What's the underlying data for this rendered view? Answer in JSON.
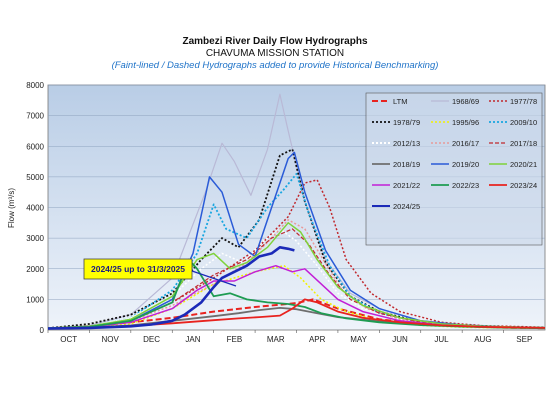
{
  "chart_data": {
    "type": "line",
    "title": "Zambezi River Daily Flow Hydrographs",
    "subtitle": "CHAVUMA MISSION STATION",
    "note": "(Faint-lined / Dashed Hydrographs added to provide Historical Benchmarking)",
    "ylabel": "Flow (m³/s)",
    "ylim": [
      0,
      8000
    ],
    "yticks": [
      0,
      1000,
      2000,
      3000,
      4000,
      5000,
      6000,
      7000,
      8000
    ],
    "categories": [
      "OCT",
      "NOV",
      "DEC",
      "JAN",
      "FEB",
      "MAR",
      "APR",
      "MAY",
      "JUN",
      "JUL",
      "AUG",
      "SEP"
    ],
    "grid": true,
    "legend_position": "top-right",
    "callout": "2024/25 up to 31/3/2025",
    "series": [
      {
        "name": "LTM",
        "color": "#e8231f",
        "dash": "6,3",
        "width": 2,
        "points": [
          [
            0,
            60
          ],
          [
            1,
            120
          ],
          [
            2,
            250
          ],
          [
            3,
            400
          ],
          [
            4,
            600
          ],
          [
            5,
            750
          ],
          [
            6,
            880
          ],
          [
            6.4,
            1000
          ],
          [
            7,
            700
          ],
          [
            8,
            350
          ],
          [
            9,
            200
          ],
          [
            10,
            120
          ],
          [
            11,
            80
          ],
          [
            12,
            60
          ]
        ]
      },
      {
        "name": "1968/69",
        "color": "#b9b9d6",
        "dash": "",
        "width": 1.2,
        "points": [
          [
            0,
            60
          ],
          [
            1,
            150
          ],
          [
            2,
            500
          ],
          [
            3,
            1700
          ],
          [
            3.8,
            4500
          ],
          [
            4.2,
            6100
          ],
          [
            4.5,
            5500
          ],
          [
            4.9,
            4400
          ],
          [
            5.3,
            5900
          ],
          [
            5.6,
            7700
          ],
          [
            5.8,
            6500
          ],
          [
            6.2,
            4200
          ],
          [
            6.7,
            2300
          ],
          [
            7.3,
            1200
          ],
          [
            8,
            700
          ],
          [
            9,
            300
          ],
          [
            10,
            180
          ],
          [
            11,
            110
          ],
          [
            12,
            80
          ]
        ]
      },
      {
        "name": "1977/78",
        "color": "#c0282d",
        "dash": "2,2",
        "width": 1.5,
        "points": [
          [
            0,
            60
          ],
          [
            1,
            120
          ],
          [
            2,
            300
          ],
          [
            3,
            900
          ],
          [
            4,
            1700
          ],
          [
            5,
            2600
          ],
          [
            5.8,
            3700
          ],
          [
            6.2,
            4800
          ],
          [
            6.5,
            4900
          ],
          [
            6.8,
            4000
          ],
          [
            7.2,
            2300
          ],
          [
            7.8,
            1200
          ],
          [
            8.5,
            600
          ],
          [
            9.5,
            250
          ],
          [
            10.5,
            140
          ],
          [
            12,
            90
          ]
        ]
      },
      {
        "name": "1978/79",
        "color": "#111111",
        "dash": "2,2",
        "width": 1.8,
        "points": [
          [
            0,
            60
          ],
          [
            1,
            200
          ],
          [
            2,
            500
          ],
          [
            3,
            1200
          ],
          [
            3.7,
            2300
          ],
          [
            4.2,
            3000
          ],
          [
            4.6,
            2700
          ],
          [
            5.1,
            3600
          ],
          [
            5.6,
            5700
          ],
          [
            5.9,
            5900
          ],
          [
            6.2,
            4200
          ],
          [
            6.7,
            2200
          ],
          [
            7.3,
            1100
          ],
          [
            8,
            600
          ],
          [
            9,
            250
          ],
          [
            10,
            150
          ],
          [
            11,
            100
          ],
          [
            12,
            80
          ]
        ]
      },
      {
        "name": "1995/96",
        "color": "#f2f200",
        "dash": "2,2",
        "width": 1.5,
        "points": [
          [
            0,
            50
          ],
          [
            1,
            80
          ],
          [
            2,
            200
          ],
          [
            3,
            700
          ],
          [
            4,
            1500
          ],
          [
            5,
            1900
          ],
          [
            5.7,
            2100
          ],
          [
            6.1,
            1700
          ],
          [
            6.6,
            1000
          ],
          [
            7.2,
            600
          ],
          [
            8,
            300
          ],
          [
            9,
            150
          ],
          [
            10,
            90
          ],
          [
            11,
            70
          ],
          [
            12,
            60
          ]
        ]
      },
      {
        "name": "2009/10",
        "color": "#18a6e0",
        "dash": "2,2",
        "width": 1.8,
        "points": [
          [
            0,
            60
          ],
          [
            1,
            120
          ],
          [
            2,
            400
          ],
          [
            3,
            1300
          ],
          [
            3.6,
            2500
          ],
          [
            4,
            4100
          ],
          [
            4.3,
            3300
          ],
          [
            4.8,
            3000
          ],
          [
            5.3,
            4000
          ],
          [
            5.7,
            4600
          ],
          [
            6,
            5100
          ],
          [
            6.3,
            3800
          ],
          [
            6.8,
            2100
          ],
          [
            7.3,
            1100
          ],
          [
            8,
            550
          ],
          [
            9,
            250
          ],
          [
            10,
            140
          ],
          [
            11,
            90
          ],
          [
            12,
            70
          ]
        ]
      },
      {
        "name": "2012/13",
        "color": "#ffffff",
        "dash": "2,2",
        "width": 1.5,
        "points": [
          [
            0,
            60
          ],
          [
            1,
            120
          ],
          [
            2,
            400
          ],
          [
            3,
            1100
          ],
          [
            3.7,
            2000
          ],
          [
            4.2,
            2500
          ],
          [
            4.7,
            2200
          ],
          [
            5.2,
            2900
          ],
          [
            5.6,
            3300
          ],
          [
            6,
            2900
          ],
          [
            6.5,
            2100
          ],
          [
            7,
            1200
          ],
          [
            7.6,
            700
          ],
          [
            8.5,
            350
          ],
          [
            9.5,
            170
          ],
          [
            10.5,
            110
          ],
          [
            12,
            80
          ]
        ]
      },
      {
        "name": "2016/17",
        "color": "#e89a9a",
        "dash": "2,2",
        "width": 1.5,
        "points": [
          [
            0,
            60
          ],
          [
            1,
            120
          ],
          [
            2,
            300
          ],
          [
            3,
            800
          ],
          [
            4,
            1500
          ],
          [
            4.8,
            2200
          ],
          [
            5.4,
            3000
          ],
          [
            5.8,
            3600
          ],
          [
            6.2,
            3300
          ],
          [
            6.6,
            2400
          ],
          [
            7.1,
            1300
          ],
          [
            7.7,
            700
          ],
          [
            8.5,
            350
          ],
          [
            9.5,
            180
          ],
          [
            10.5,
            110
          ],
          [
            12,
            80
          ]
        ]
      },
      {
        "name": "2017/18",
        "color": "#c0282d",
        "dash": "4,2",
        "width": 1.2,
        "points": [
          [
            0,
            60
          ],
          [
            1,
            130
          ],
          [
            2,
            300
          ],
          [
            3,
            900
          ],
          [
            4,
            1800
          ],
          [
            4.8,
            2300
          ],
          [
            5.4,
            3000
          ],
          [
            5.9,
            3300
          ],
          [
            6.3,
            2800
          ],
          [
            6.8,
            1800
          ],
          [
            7.3,
            1000
          ],
          [
            8,
            550
          ],
          [
            9,
            250
          ],
          [
            10,
            140
          ],
          [
            11,
            90
          ],
          [
            12,
            70
          ]
        ]
      },
      {
        "name": "2018/19",
        "color": "#6e6e6e",
        "dash": "",
        "width": 1.8,
        "points": [
          [
            0,
            40
          ],
          [
            1,
            80
          ],
          [
            2,
            150
          ],
          [
            3,
            300
          ],
          [
            4,
            450
          ],
          [
            4.6,
            550
          ],
          [
            5.1,
            650
          ],
          [
            5.6,
            720
          ],
          [
            6,
            680
          ],
          [
            6.5,
            550
          ],
          [
            7,
            420
          ],
          [
            8,
            280
          ],
          [
            9,
            180
          ],
          [
            10,
            120
          ],
          [
            11,
            90
          ],
          [
            12,
            70
          ]
        ]
      },
      {
        "name": "2019/20",
        "color": "#2a5bd7",
        "dash": "",
        "width": 1.5,
        "points": [
          [
            0,
            60
          ],
          [
            1,
            100
          ],
          [
            2,
            300
          ],
          [
            3,
            1000
          ],
          [
            3.5,
            2500
          ],
          [
            3.9,
            5000
          ],
          [
            4.2,
            4500
          ],
          [
            4.6,
            2800
          ],
          [
            5,
            2400
          ],
          [
            5.4,
            4000
          ],
          [
            5.8,
            5600
          ],
          [
            5.95,
            5800
          ],
          [
            6.2,
            4500
          ],
          [
            6.7,
            2600
          ],
          [
            7.3,
            1300
          ],
          [
            8,
            700
          ],
          [
            9,
            300
          ],
          [
            10,
            160
          ],
          [
            11,
            100
          ],
          [
            12,
            80
          ]
        ]
      },
      {
        "name": "2020/21",
        "color": "#7fd23a",
        "dash": "",
        "width": 1.5,
        "points": [
          [
            0,
            60
          ],
          [
            1,
            120
          ],
          [
            2,
            350
          ],
          [
            3,
            1100
          ],
          [
            3.6,
            2300
          ],
          [
            4,
            2500
          ],
          [
            4.4,
            2000
          ],
          [
            4.8,
            2200
          ],
          [
            5.3,
            2700
          ],
          [
            5.8,
            3500
          ],
          [
            6.1,
            3200
          ],
          [
            6.5,
            2300
          ],
          [
            7,
            1400
          ],
          [
            7.6,
            800
          ],
          [
            8.5,
            400
          ],
          [
            9.5,
            200
          ],
          [
            10.5,
            120
          ],
          [
            12,
            80
          ]
        ]
      },
      {
        "name": "2021/22",
        "color": "#c21fd6",
        "dash": "",
        "width": 1.5,
        "points": [
          [
            0,
            60
          ],
          [
            1,
            100
          ],
          [
            2,
            250
          ],
          [
            3,
            700
          ],
          [
            3.6,
            1300
          ],
          [
            4,
            1600
          ],
          [
            4.5,
            1600
          ],
          [
            5,
            1900
          ],
          [
            5.5,
            2100
          ],
          [
            5.9,
            1900
          ],
          [
            6.2,
            2000
          ],
          [
            6.6,
            1500
          ],
          [
            7,
            1000
          ],
          [
            7.6,
            600
          ],
          [
            8.5,
            300
          ],
          [
            9.5,
            160
          ],
          [
            10.5,
            100
          ],
          [
            12,
            70
          ]
        ]
      },
      {
        "name": "2022/23",
        "color": "#1e9c52",
        "dash": "",
        "width": 1.8,
        "points": [
          [
            0,
            60
          ],
          [
            1,
            100
          ],
          [
            2,
            300
          ],
          [
            3,
            900
          ],
          [
            3.4,
            2300
          ],
          [
            3.6,
            2000
          ],
          [
            4,
            1100
          ],
          [
            4.4,
            1200
          ],
          [
            4.8,
            1000
          ],
          [
            5.3,
            900
          ],
          [
            5.8,
            850
          ],
          [
            6.2,
            750
          ],
          [
            6.6,
            550
          ],
          [
            7.2,
            380
          ],
          [
            8,
            250
          ],
          [
            9,
            160
          ],
          [
            10,
            110
          ],
          [
            11,
            80
          ],
          [
            12,
            60
          ]
        ]
      },
      {
        "name": "2023/24",
        "color": "#e8231f",
        "dash": "",
        "width": 1.8,
        "points": [
          [
            0,
            50
          ],
          [
            1,
            70
          ],
          [
            2,
            130
          ],
          [
            3,
            220
          ],
          [
            4,
            320
          ],
          [
            4.6,
            380
          ],
          [
            5.1,
            420
          ],
          [
            5.6,
            470
          ],
          [
            5.9,
            700
          ],
          [
            6.2,
            1000
          ],
          [
            6.5,
            900
          ],
          [
            7,
            600
          ],
          [
            7.6,
            400
          ],
          [
            8.5,
            250
          ],
          [
            9.5,
            150
          ],
          [
            10.5,
            100
          ],
          [
            12,
            70
          ]
        ]
      },
      {
        "name": "2024/25",
        "color": "#1b2ab8",
        "dash": "",
        "width": 2.6,
        "points": [
          [
            0,
            50
          ],
          [
            1,
            70
          ],
          [
            2,
            120
          ],
          [
            2.5,
            180
          ],
          [
            3,
            300
          ],
          [
            3.3,
            500
          ],
          [
            3.7,
            900
          ],
          [
            4,
            1400
          ],
          [
            4.2,
            1700
          ],
          [
            4.5,
            1900
          ],
          [
            4.8,
            2100
          ],
          [
            5.1,
            2400
          ],
          [
            5.4,
            2500
          ],
          [
            5.6,
            2700
          ],
          [
            5.8,
            2650
          ],
          [
            5.95,
            2600
          ]
        ]
      }
    ]
  }
}
